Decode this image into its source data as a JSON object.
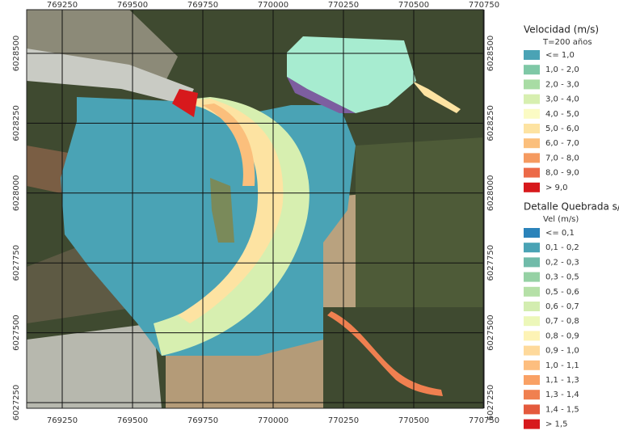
{
  "map": {
    "x_ticks": [
      769250,
      769500,
      769750,
      770000,
      770250,
      770500,
      770750
    ],
    "y_ticks": [
      6028500,
      6028250,
      6028000,
      6027750,
      6027500,
      6027250
    ]
  },
  "legend": {
    "title": "Velocidad (m/s)",
    "subtitle": "T=200 años",
    "items": [
      {
        "label": "<= 1,0",
        "color": "#4aa3b5"
      },
      {
        "label": "1,0 - 2,0",
        "color": "#7fc8a6"
      },
      {
        "label": "2,0 - 3,0",
        "color": "#a8dca4"
      },
      {
        "label": "3,0 - 4,0",
        "color": "#d7efb0"
      },
      {
        "label": "4,0 - 5,0",
        "color": "#fbfbc4"
      },
      {
        "label": "5,0 - 6,0",
        "color": "#fde3a2"
      },
      {
        "label": "6,0 - 7,0",
        "color": "#fbbf7c"
      },
      {
        "label": "7,0 - 8,0",
        "color": "#f59a60"
      },
      {
        "label": "8,0 - 9,0",
        "color": "#ec6a48"
      },
      {
        "label": "> 9,0",
        "color": "#d7191c"
      }
    ]
  },
  "legend_detail": {
    "title": "Detalle Quebrada s/n",
    "subtitle": "Vel (m/s)",
    "items": [
      {
        "label": "<= 0,1",
        "color": "#2b83ba"
      },
      {
        "label": "0,1 - 0,2",
        "color": "#4aa3b5"
      },
      {
        "label": "0,2 - 0,3",
        "color": "#70bba9"
      },
      {
        "label": "0,3 - 0,5",
        "color": "#95d1a4"
      },
      {
        "label": "0,5 - 0,6",
        "color": "#b5e0a7"
      },
      {
        "label": "0,6 - 0,7",
        "color": "#d3edb0"
      },
      {
        "label": "0,7 - 0,8",
        "color": "#ecf7b9"
      },
      {
        "label": "0,8 - 0,9",
        "color": "#fdf3b5"
      },
      {
        "label": "0,9 - 1,0",
        "color": "#fed99b"
      },
      {
        "label": "1,0 - 1,1",
        "color": "#fdbe7f"
      },
      {
        "label": "1,1 - 1,3",
        "color": "#f9a165"
      },
      {
        "label": "1,3 - 1,4",
        "color": "#f08050"
      },
      {
        "label": "1,4 - 1,5",
        "color": "#e45a3d"
      },
      {
        "label": "> 1,5",
        "color": "#d7191c"
      }
    ]
  }
}
